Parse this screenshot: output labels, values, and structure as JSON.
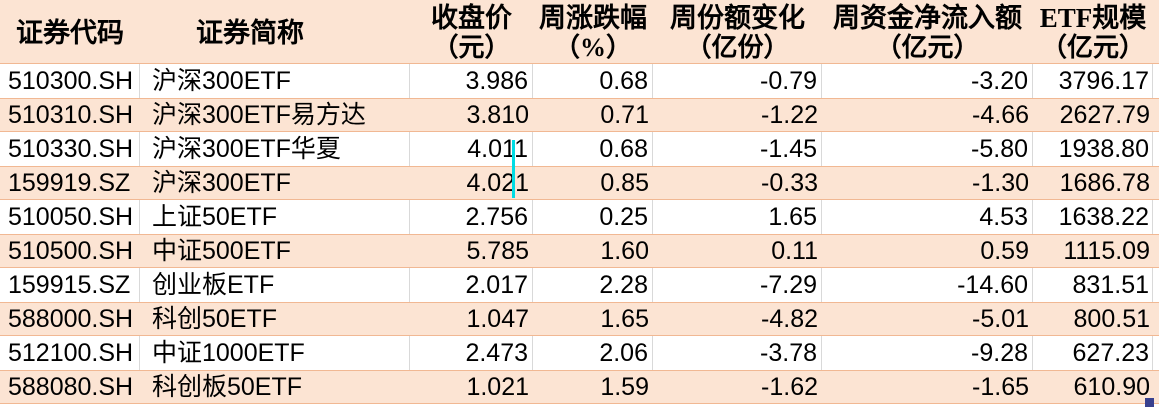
{
  "colors": {
    "background": "#ffffff",
    "peach": "#fce4d3",
    "gridline": "#d9d9d9",
    "row_edge": "#f1b893",
    "text": "#000000",
    "handle": "#39418f",
    "artifact": "#00dce4"
  },
  "table": {
    "header": {
      "code": {
        "label": "证券代码",
        "unit": ""
      },
      "name": {
        "label": "证券简称",
        "unit": ""
      },
      "close": {
        "label": "收盘价",
        "unit": "（元）"
      },
      "pct": {
        "label": "周涨跌幅",
        "unit": "（%）"
      },
      "share": {
        "label": "周份额变化",
        "unit": "（亿份）"
      },
      "inflow": {
        "label": "周资金净流入额",
        "unit": "（亿元）"
      },
      "scale": {
        "label": "ETF规模",
        "unit": "（亿元）"
      }
    },
    "rows": [
      {
        "code": "510300.SH",
        "name": "沪深300ETF",
        "close": "3.986",
        "pct": "0.68",
        "share": "-0.79",
        "inflow": "-3.20",
        "scale": "3796.17"
      },
      {
        "code": "510310.SH",
        "name": "沪深300ETF易方达",
        "close": "3.810",
        "pct": "0.71",
        "share": "-1.22",
        "inflow": "-4.66",
        "scale": "2627.79"
      },
      {
        "code": "510330.SH",
        "name": "沪深300ETF华夏",
        "close": "4.011",
        "pct": "0.68",
        "share": "-1.45",
        "inflow": "-5.80",
        "scale": "1938.80"
      },
      {
        "code": "159919.SZ",
        "name": "沪深300ETF",
        "close": "4.021",
        "pct": "0.85",
        "share": "-0.33",
        "inflow": "-1.30",
        "scale": "1686.78"
      },
      {
        "code": "510050.SH",
        "name": "上证50ETF",
        "close": "2.756",
        "pct": "0.25",
        "share": "1.65",
        "inflow": "4.53",
        "scale": "1638.22"
      },
      {
        "code": "510500.SH",
        "name": "中证500ETF",
        "close": "5.785",
        "pct": "1.60",
        "share": "0.11",
        "inflow": "0.59",
        "scale": "1115.09"
      },
      {
        "code": "159915.SZ",
        "name": "创业板ETF",
        "close": "2.017",
        "pct": "2.28",
        "share": "-7.29",
        "inflow": "-14.60",
        "scale": "831.51"
      },
      {
        "code": "588000.SH",
        "name": "科创50ETF",
        "close": "1.047",
        "pct": "1.65",
        "share": "-4.82",
        "inflow": "-5.01",
        "scale": "800.51"
      },
      {
        "code": "512100.SH",
        "name": "中证1000ETF",
        "close": "2.473",
        "pct": "2.06",
        "share": "-3.78",
        "inflow": "-9.28",
        "scale": "627.23"
      },
      {
        "code": "588080.SH",
        "name": "科创板50ETF",
        "close": "1.021",
        "pct": "1.59",
        "share": "-1.62",
        "inflow": "-1.65",
        "scale": "610.90"
      }
    ]
  }
}
